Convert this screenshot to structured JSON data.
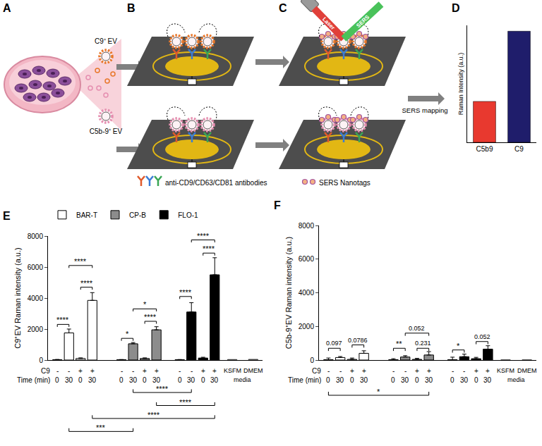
{
  "diagram": {
    "panels": [
      "A",
      "B",
      "C",
      "D"
    ],
    "ev_labels": [
      "C9⁺ EV",
      "C5b-9⁺ EV"
    ],
    "antibodies": "anti-CD9/CD63/CD81 antibodies",
    "laser": "Laser",
    "sers": "SERS",
    "nanotags": "SERS Nanotags",
    "mapping": "SERS mapping"
  },
  "chart_data": [
    {
      "panel": "D",
      "type": "bar",
      "y_label": "Raman Intensity (a.u.)",
      "categories": [
        "C5b9",
        "C9"
      ],
      "values": [
        0.35,
        0.95
      ],
      "colors": [
        "#e8392f",
        "#1f1d6b"
      ],
      "ylim": [
        0,
        1
      ],
      "tick_labels": "x"
    },
    {
      "panel": "E",
      "type": "bar",
      "y_label": "C9⁺EV Raman intensity (a.u.)",
      "ylim": [
        0,
        8000
      ],
      "yticks": [
        0,
        2000,
        4000,
        6000,
        8000
      ],
      "grid": false,
      "legend": "top-left",
      "row_labels": [
        "C9",
        "Time (min)"
      ],
      "c9": [
        "-",
        "-",
        "+",
        "+"
      ],
      "time": [
        "0",
        "30",
        "0",
        "30"
      ],
      "series": [
        {
          "name": "BAR-T",
          "color": "#ffffff",
          "values": [
            20,
            1750,
            100,
            3850
          ],
          "errors": [
            20,
            250,
            40,
            500
          ]
        },
        {
          "name": "CP-B",
          "color": "#8c8c8c",
          "values": [
            20,
            1050,
            100,
            1950
          ],
          "errors": [
            15,
            80,
            40,
            200
          ]
        },
        {
          "name": "FLO-1",
          "color": "#000000",
          "values": [
            20,
            3100,
            130,
            5500
          ],
          "errors": [
            15,
            600,
            50,
            1100
          ]
        }
      ],
      "media": {
        "label": "media",
        "categories": [
          "KSFM",
          "DMEM"
        ],
        "values": [
          40,
          50
        ],
        "color": "#7f7f7f"
      },
      "brackets": [
        {
          "from": [
            0,
            0
          ],
          "to": [
            0,
            1
          ],
          "y": 2300,
          "label": "****"
        },
        {
          "from": [
            0,
            2
          ],
          "to": [
            0,
            3
          ],
          "y": 4700,
          "label": "****"
        },
        {
          "from": [
            0,
            1
          ],
          "to": [
            0,
            3
          ],
          "y": 6100,
          "label": "****"
        },
        {
          "from": [
            1,
            0
          ],
          "to": [
            1,
            1
          ],
          "y": 1400,
          "label": "*"
        },
        {
          "from": [
            1,
            2
          ],
          "to": [
            1,
            3
          ],
          "y": 2500,
          "label": "****"
        },
        {
          "from": [
            1,
            1
          ],
          "to": [
            1,
            3
          ],
          "y": 3300,
          "label": "*"
        },
        {
          "from": [
            2,
            0
          ],
          "to": [
            2,
            1
          ],
          "y": 4100,
          "label": "****"
        },
        {
          "from": [
            2,
            2
          ],
          "to": [
            2,
            3
          ],
          "y": 6900,
          "label": "****"
        },
        {
          "from": [
            2,
            1
          ],
          "to": [
            2,
            3
          ],
          "y": 7750,
          "label": "****"
        }
      ],
      "brackets_below": [
        {
          "from": [
            1,
            1
          ],
          "to": [
            2,
            1
          ],
          "label": "****"
        },
        {
          "from": [
            1,
            3
          ],
          "to": [
            2,
            3
          ],
          "label": "****"
        },
        {
          "from": [
            0,
            3
          ],
          "to": [
            2,
            3
          ],
          "label": "****"
        },
        {
          "from": [
            0,
            1
          ],
          "to": [
            1,
            1
          ],
          "label": "***"
        }
      ]
    },
    {
      "panel": "F",
      "type": "bar",
      "y_label": "C5b-9⁺EV Raman intensity (a.u.)",
      "ylim": [
        0,
        8000
      ],
      "yticks": [
        0,
        2000,
        4000,
        6000,
        8000
      ],
      "grid": false,
      "row_labels": [
        "C9",
        "Time (min)"
      ],
      "c9": [
        "-",
        "-",
        "+",
        "+"
      ],
      "time": [
        "0",
        "30",
        "0",
        "30"
      ],
      "series": [
        {
          "color": "#ffffff",
          "values": [
            20,
            150,
            40,
            400
          ],
          "errors": [
            100,
            60,
            80,
            150
          ]
        },
        {
          "color": "#8c8c8c",
          "values": [
            20,
            180,
            40,
            300
          ],
          "errors": [
            60,
            80,
            60,
            200
          ]
        },
        {
          "color": "#000000",
          "values": [
            20,
            200,
            80,
            650
          ],
          "errors": [
            150,
            150,
            80,
            200
          ]
        }
      ],
      "media": {
        "label": "media",
        "categories": [
          "KSFM",
          "DMEM"
        ],
        "values": [
          15,
          15
        ],
        "color": "#7f7f7f"
      },
      "brackets": [
        {
          "from": [
            0,
            0
          ],
          "to": [
            0,
            1
          ],
          "y": 700,
          "label": "0.097"
        },
        {
          "from": [
            0,
            2
          ],
          "to": [
            0,
            3
          ],
          "y": 900,
          "label": "0.0786"
        },
        {
          "from": [
            1,
            0
          ],
          "to": [
            1,
            1
          ],
          "y": 700,
          "label": "**"
        },
        {
          "from": [
            1,
            2
          ],
          "to": [
            1,
            3
          ],
          "y": 700,
          "label": "0.231"
        },
        {
          "from": [
            1,
            1
          ],
          "to": [
            1,
            3
          ],
          "y": 1600,
          "label": "0.052"
        },
        {
          "from": [
            2,
            0
          ],
          "to": [
            2,
            1
          ],
          "y": 600,
          "label": "*"
        },
        {
          "from": [
            2,
            2
          ],
          "to": [
            2,
            3
          ],
          "y": 1100,
          "label": "0.052"
        }
      ],
      "brackets_below": [
        {
          "from": [
            0,
            0
          ],
          "to": [
            1,
            3
          ],
          "label": "*"
        }
      ]
    }
  ]
}
